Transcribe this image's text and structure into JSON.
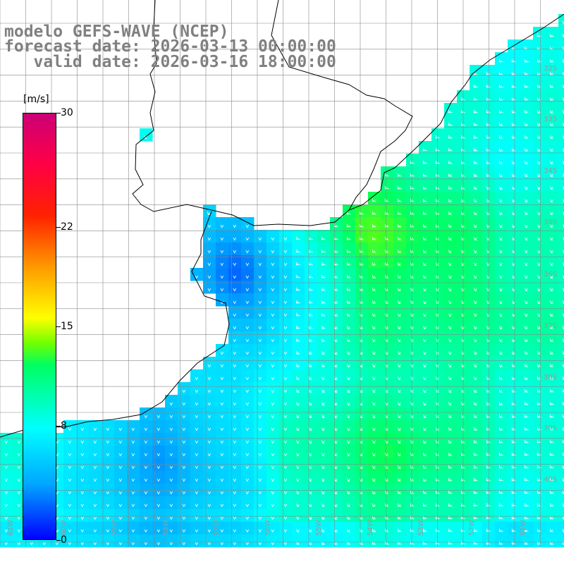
{
  "title": {
    "line1": "modelo GEFS-WAVE (NCEP)",
    "line2": "forecast date: 2026-03-13 00:00:00",
    "line3": "   valid date: 2026-03-16 18:00:00"
  },
  "colorbar": {
    "unit": "[m/s]",
    "min": 0,
    "max": 30,
    "ticks": [
      "30",
      "22",
      "15",
      "8",
      "0"
    ],
    "tick_values": [
      30,
      22,
      15,
      8,
      0
    ]
  },
  "grid_labels": {
    "lat": [
      "32S",
      "33S",
      "34S",
      "35S",
      "36S",
      "37S",
      "38S",
      "39S",
      "40S"
    ],
    "lon": [
      "61W",
      "60W",
      "59W",
      "58W",
      "57W",
      "56W",
      "55W",
      "54W",
      "53W",
      "52W",
      "51W"
    ]
  },
  "colors": {
    "land": "#ffffff",
    "coast": "#000000",
    "grid": "#888888",
    "title": "#808080",
    "arrows": "#ffffff"
  },
  "wind_direction": "from northeast toward southwest"
}
